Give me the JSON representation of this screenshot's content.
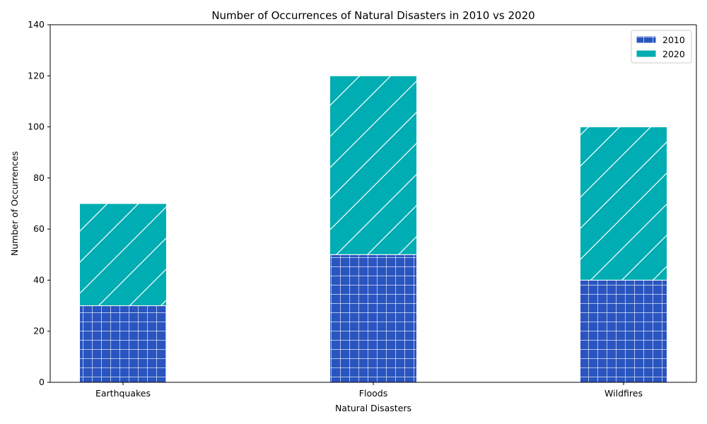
{
  "chart_data": {
    "type": "bar",
    "stacked": true,
    "title": "Number of Occurrences of Natural Disasters in 2010 vs 2020",
    "xlabel": "Natural Disasters",
    "ylabel": "Number of Occurrences",
    "categories": [
      "Earthquakes",
      "Floods",
      "Wildfires"
    ],
    "series": [
      {
        "name": "2010",
        "values": [
          30,
          50,
          40
        ],
        "color": "#2a55c0",
        "hatch": "grid"
      },
      {
        "name": "2020",
        "values": [
          40,
          70,
          60
        ],
        "color": "#00adb2",
        "hatch": "diagonal"
      }
    ],
    "ylim": [
      0,
      140
    ],
    "yticks": [
      0,
      20,
      40,
      60,
      80,
      100,
      120,
      140
    ],
    "grid": false,
    "legend_position": "top-right"
  }
}
